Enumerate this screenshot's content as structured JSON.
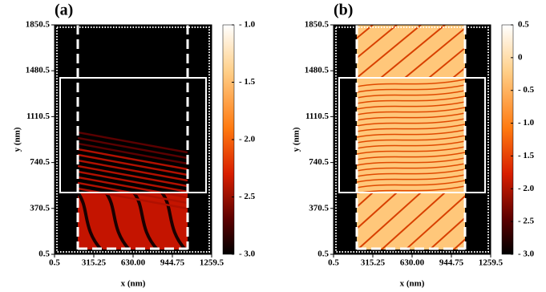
{
  "chart_data": [
    {
      "type": "heatmap",
      "label": "(a)",
      "xlabel": "x (nm)",
      "ylabel": "y (nm)",
      "xlim": [
        0.5,
        1259.5
      ],
      "ylim": [
        0.5,
        1850.5
      ],
      "xticks": [
        0.5,
        315.25,
        {
          "value": 630,
          "label": "630.00"
        },
        944.75,
        1259.5
      ],
      "yticks": [
        0.5,
        370.5,
        740.5,
        1110.5,
        1480.5,
        1850.5
      ],
      "colorbar_lim": [
        -3,
        -1
      ],
      "colorbar_ticks": [
        {
          "value": -1,
          "label": "- 1.0"
        },
        {
          "value": -1.5,
          "label": "- 1.5"
        },
        {
          "value": -2,
          "label": "- 2.0"
        },
        {
          "value": -2.5,
          "label": "- 2.5"
        },
        {
          "value": -3,
          "label": "- 3.0"
        }
      ]
    },
    {
      "type": "heatmap",
      "label": "(b)",
      "xlabel": "x (nm)",
      "ylabel": "y (nm)",
      "xlim": [
        0.5,
        1259.5
      ],
      "ylim": [
        0.5,
        1850.5
      ],
      "xticks": [
        0.5,
        315.25,
        {
          "value": 630,
          "label": "630.00"
        },
        944.75,
        1259.5
      ],
      "yticks": [
        0.5,
        370.5,
        740.5,
        1110.5,
        1480.5,
        1850.5
      ],
      "colorbar_lim": [
        -3,
        0.5
      ],
      "colorbar_ticks": [
        0.5,
        0,
        {
          "value": -0.5,
          "label": "- 0.5"
        },
        {
          "value": -1,
          "label": "- 1.0"
        },
        {
          "value": -1.5,
          "label": "- 1.5"
        },
        {
          "value": -2,
          "label": "- 2.0"
        },
        {
          "value": -2.5,
          "label": "- 2.5"
        },
        {
          "value": -3,
          "label": "- 3.0"
        }
      ]
    }
  ]
}
